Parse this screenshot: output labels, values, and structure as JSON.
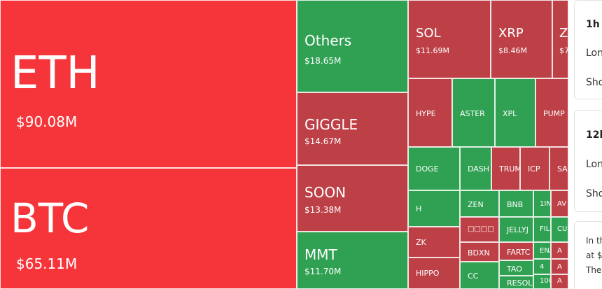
{
  "colors": {
    "loss": "#f6353a",
    "red": "#bd4047",
    "green": "#30a153"
  },
  "tiles": [
    {
      "name": "eth",
      "symbol": "ETH",
      "value": "$90.08M",
      "color": "loss"
    },
    {
      "name": "btc",
      "symbol": "BTC",
      "value": "$65.11M",
      "color": "loss"
    },
    {
      "name": "others",
      "symbol": "Others",
      "value": "$18.65M",
      "color": "green"
    },
    {
      "name": "giggle",
      "symbol": "GIGGLE",
      "value": "$14.67M",
      "color": "red"
    },
    {
      "name": "soon",
      "symbol": "SOON",
      "value": "$13.38M",
      "color": "red"
    },
    {
      "name": "mmt",
      "symbol": "MMT",
      "value": "$11.70M",
      "color": "green"
    },
    {
      "name": "sol",
      "symbol": "SOL",
      "value": "$11.69M",
      "color": "red"
    },
    {
      "name": "xrp",
      "symbol": "XRP",
      "value": "$8.46M",
      "color": "red"
    },
    {
      "name": "z",
      "symbol": "Z",
      "value": "$7",
      "color": "red"
    },
    {
      "name": "hype",
      "symbol": "HYPE",
      "value": "",
      "color": "red"
    },
    {
      "name": "aster",
      "symbol": "ASTER",
      "value": "",
      "color": "green"
    },
    {
      "name": "xpl",
      "symbol": "XPL",
      "value": "",
      "color": "green"
    },
    {
      "name": "pump",
      "symbol": "PUMP",
      "value": "",
      "color": "red"
    },
    {
      "name": "doge",
      "symbol": "DOGE",
      "value": "",
      "color": "green"
    },
    {
      "name": "dash",
      "symbol": "DASH",
      "value": "",
      "color": "green"
    },
    {
      "name": "trum",
      "symbol": "TRUM",
      "value": "",
      "color": "red"
    },
    {
      "name": "icp",
      "symbol": "ICP",
      "value": "",
      "color": "red"
    },
    {
      "name": "sa",
      "symbol": "SA",
      "value": "",
      "color": "red"
    },
    {
      "name": "h",
      "symbol": "H",
      "value": "",
      "color": "green"
    },
    {
      "name": "zen",
      "symbol": "ZEN",
      "value": "",
      "color": "green"
    },
    {
      "name": "bnb",
      "symbol": "BNB",
      "value": "",
      "color": "green"
    },
    {
      "name": "1in",
      "symbol": "1IN",
      "value": "",
      "color": "green"
    },
    {
      "name": "av",
      "symbol": "AV",
      "value": "",
      "color": "red"
    },
    {
      "name": "cjk",
      "symbol": "□□□□",
      "value": "",
      "color": "red"
    },
    {
      "name": "jellyj",
      "symbol": "JELLYJ",
      "value": "",
      "color": "green"
    },
    {
      "name": "fil",
      "symbol": "FIL",
      "value": "",
      "color": "green"
    },
    {
      "name": "cu",
      "symbol": "CU",
      "value": "",
      "color": "green"
    },
    {
      "name": "zk",
      "symbol": "ZK",
      "value": "",
      "color": "red"
    },
    {
      "name": "bdxn",
      "symbol": "BDXN",
      "value": "",
      "color": "red"
    },
    {
      "name": "fartc",
      "symbol": "FARTC",
      "value": "",
      "color": "red"
    },
    {
      "name": "ena",
      "symbol": "ENA",
      "value": "",
      "color": "green"
    },
    {
      "name": "a1",
      "symbol": "A",
      "value": "",
      "color": "red"
    },
    {
      "name": "tao",
      "symbol": "TAO",
      "value": "",
      "color": "green"
    },
    {
      "name": "four",
      "symbol": "4",
      "value": "",
      "color": "green"
    },
    {
      "name": "a2",
      "symbol": "A",
      "value": "",
      "color": "red"
    },
    {
      "name": "hippo",
      "symbol": "HIPPO",
      "value": "",
      "color": "red"
    },
    {
      "name": "cc",
      "symbol": "CC",
      "value": "",
      "color": "green"
    },
    {
      "name": "resol",
      "symbol": "RESOL",
      "value": "",
      "color": "green"
    },
    {
      "name": "hundred",
      "symbol": "100",
      "value": "",
      "color": "green"
    },
    {
      "name": "a3",
      "symbol": "A",
      "value": "",
      "color": "red"
    }
  ],
  "sidebar": {
    "card1": {
      "title": "1h",
      "long": "Lon",
      "short": "Sho"
    },
    "card2": {
      "title": "12h",
      "long": "Lon",
      "short": "Sho"
    },
    "card3": {
      "line1": "In th",
      "line2": "at $",
      "line3": "The"
    }
  }
}
